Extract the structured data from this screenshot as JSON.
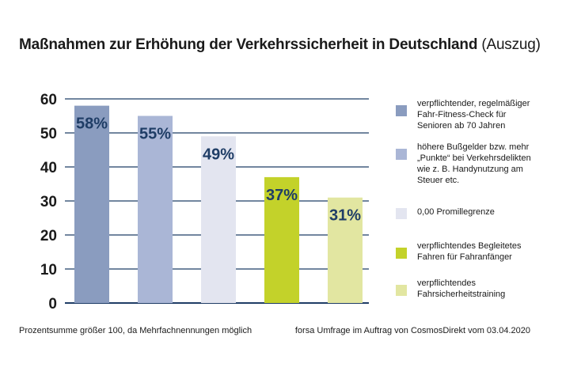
{
  "title": {
    "main": "Maßnahmen zur Erhöhung der Verkehrssicherheit in Deutschland",
    "sub": "(Auszug)"
  },
  "chart_data": {
    "type": "bar",
    "title": "Maßnahmen zur Erhöhung der Verkehrssicherheit in Deutschland (Auszug)",
    "categories": [
      "verpflichtender, regelmäßiger Fahr-Fitness-Check für Senioren ab 70 Jahren",
      "höhere Bußgelder bzw. mehr „Punkte“ bei Verkehrsdelikten wie z. B. Handynutzung am Steuer etc.",
      "0,00 Promillegrenze",
      "verpflichtendes Begleitetes Fahren für Fahranfänger",
      "verpflichtendes Fahrsicherheitstraining"
    ],
    "values": [
      58,
      55,
      49,
      37,
      31
    ],
    "labels": [
      "58%",
      "55%",
      "49%",
      "37%",
      "31%"
    ],
    "colors": [
      "#8a9cbf",
      "#aab6d6",
      "#e3e5f0",
      "#c3d22a",
      "#e2e6a1"
    ],
    "label_color": "#1f3d66",
    "axis_color": "#1f3d66",
    "ylim": [
      0,
      60
    ],
    "yticks": [
      0,
      10,
      20,
      30,
      40,
      50,
      60
    ],
    "grid": true,
    "xlabel": "",
    "ylabel": "",
    "legend_position": "right"
  },
  "legend": [
    {
      "name": "legend-item-fitness-check",
      "lines": [
        "verpflichtender, regelmäßiger",
        "Fahr-Fitness-Check für",
        "Senioren ab 70 Jahren"
      ]
    },
    {
      "name": "legend-item-bussgelder",
      "lines": [
        "höhere Bußgelder bzw. mehr",
        "„Punkte“ bei Verkehrsdelikten",
        "wie z. B. Handynutzung am",
        "Steuer etc."
      ]
    },
    {
      "name": "legend-item-promillegrenze",
      "lines": [
        "0,00 Promillegrenze"
      ]
    },
    {
      "name": "legend-item-begleitetes-fahren",
      "lines": [
        "verpflichtendes Begleitetes",
        "Fahren für Fahranfänger"
      ]
    },
    {
      "name": "legend-item-fahrsicherheitstraining",
      "lines": [
        "verpflichtendes",
        "Fahrsicherheitstraining"
      ]
    }
  ],
  "footnotes": {
    "left": "Prozentsumme größer 100, da Mehrfachnennungen möglich",
    "right": "forsa Umfrage im Auftrag von CosmosDirekt vom 03.04.2020"
  }
}
